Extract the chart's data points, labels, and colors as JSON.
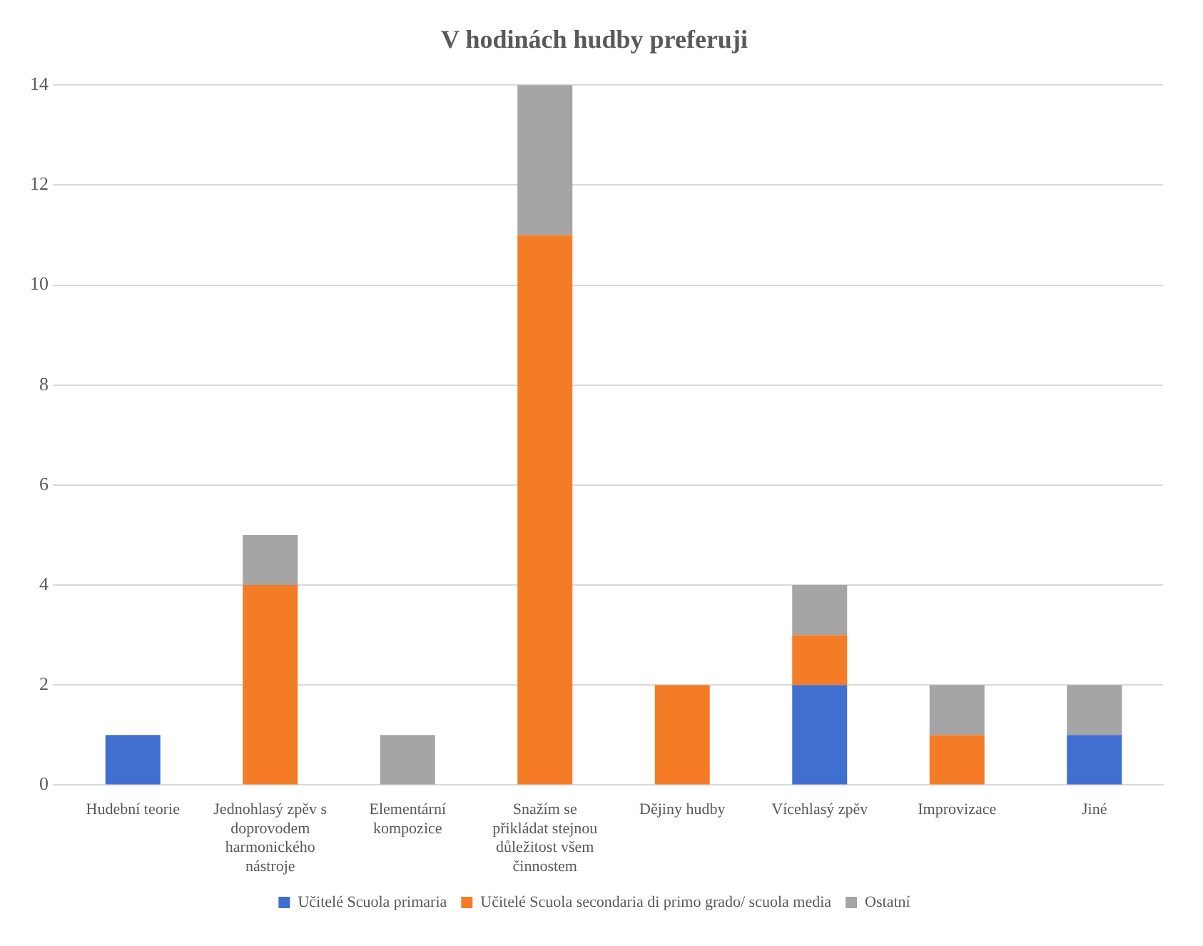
{
  "chart_data": {
    "type": "bar",
    "stacked": true,
    "title": "V hodinách hudby preferuji",
    "categories": [
      "Hudební teorie",
      "Jednohlasý zpěv s doprovodem harmonického nástroje",
      "Elementární kompozice",
      "Snažím se přikládat stejnou důležitost všem činnostem",
      "Dějiny hudby",
      "Vícehlasý zpěv",
      "Improvizace",
      "Jiné"
    ],
    "series": [
      {
        "name": "Učitelé Scuola primaria",
        "color": "#3f6fd0",
        "values": [
          1,
          0,
          0,
          0,
          0,
          2,
          0,
          1
        ]
      },
      {
        "name": "Učitelé Scuola secondaria di primo grado/ scuola media",
        "color": "#f47c26",
        "values": [
          0,
          4,
          0,
          11,
          2,
          1,
          1,
          0
        ]
      },
      {
        "name": "Ostatní",
        "color": "#a5a5a5",
        "values": [
          0,
          1,
          1,
          3,
          0,
          1,
          1,
          1
        ]
      }
    ],
    "ylim": [
      0,
      14
    ],
    "yticks": [
      0,
      2,
      4,
      6,
      8,
      10,
      12,
      14
    ],
    "grid": "y",
    "legend": "bottom"
  }
}
